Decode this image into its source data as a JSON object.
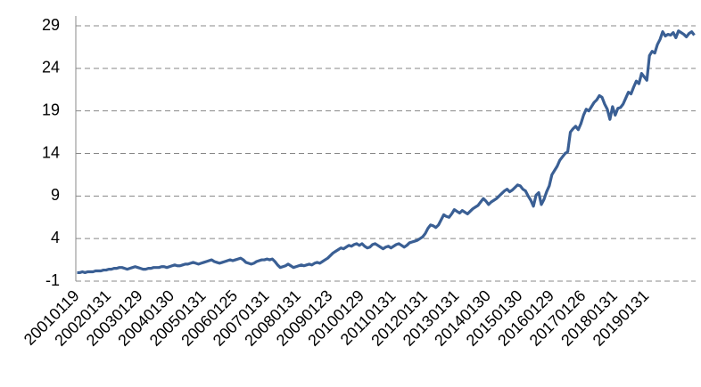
{
  "chart_data": {
    "type": "line",
    "categories": [
      "20010119",
      null,
      null,
      null,
      null,
      null,
      null,
      null,
      null,
      null,
      null,
      null,
      "20020131",
      null,
      null,
      null,
      null,
      null,
      null,
      null,
      null,
      null,
      null,
      null,
      "20030129",
      null,
      null,
      null,
      null,
      null,
      null,
      null,
      null,
      null,
      null,
      null,
      "20040130",
      null,
      null,
      null,
      null,
      null,
      null,
      null,
      null,
      null,
      null,
      null,
      "20050131",
      null,
      null,
      null,
      null,
      null,
      null,
      null,
      null,
      null,
      null,
      null,
      "20060125",
      null,
      null,
      null,
      null,
      null,
      null,
      null,
      null,
      null,
      null,
      null,
      "20070131",
      null,
      null,
      null,
      null,
      null,
      null,
      null,
      null,
      null,
      null,
      null,
      "20080131",
      null,
      null,
      null,
      null,
      null,
      null,
      null,
      null,
      null,
      null,
      null,
      "20090123",
      null,
      null,
      null,
      null,
      null,
      null,
      null,
      null,
      null,
      null,
      null,
      "20100129",
      null,
      null,
      null,
      null,
      null,
      null,
      null,
      null,
      null,
      null,
      null,
      "20110131",
      null,
      null,
      null,
      null,
      null,
      null,
      null,
      null,
      null,
      null,
      null,
      "20120131",
      null,
      null,
      null,
      null,
      null,
      null,
      null,
      null,
      null,
      null,
      null,
      "20130131",
      null,
      null,
      null,
      null,
      null,
      null,
      null,
      null,
      null,
      null,
      null,
      "20140130",
      null,
      null,
      null,
      null,
      null,
      null,
      null,
      null,
      null,
      null,
      null,
      "20150130",
      null,
      null,
      null,
      null,
      null,
      null,
      null,
      null,
      null,
      null,
      null,
      "20160129",
      null,
      null,
      null,
      null,
      null,
      null,
      null,
      null,
      null,
      null,
      null,
      "20170126",
      null,
      null,
      null,
      null,
      null,
      null,
      null,
      null,
      null,
      null,
      null,
      "20180131",
      null,
      null,
      null,
      null,
      null,
      null,
      null,
      null,
      null,
      null,
      null,
      "20190131",
      null,
      null,
      null,
      null,
      null,
      null,
      null,
      null,
      null,
      null,
      null,
      null,
      null,
      null,
      null,
      null,
      null,
      null
    ],
    "values": [
      0.0,
      0.0,
      0.1,
      0.0,
      0.1,
      0.1,
      0.1,
      0.2,
      0.2,
      0.2,
      0.3,
      0.3,
      0.4,
      0.4,
      0.5,
      0.5,
      0.6,
      0.6,
      0.5,
      0.4,
      0.5,
      0.6,
      0.7,
      0.6,
      0.5,
      0.4,
      0.4,
      0.5,
      0.5,
      0.6,
      0.6,
      0.6,
      0.7,
      0.7,
      0.6,
      0.7,
      0.8,
      0.9,
      0.8,
      0.8,
      0.9,
      1.0,
      1.0,
      1.1,
      1.2,
      1.1,
      1.0,
      1.1,
      1.2,
      1.3,
      1.4,
      1.5,
      1.3,
      1.2,
      1.1,
      1.2,
      1.3,
      1.4,
      1.5,
      1.4,
      1.5,
      1.6,
      1.7,
      1.5,
      1.2,
      1.1,
      1.0,
      1.1,
      1.3,
      1.4,
      1.5,
      1.5,
      1.6,
      1.5,
      1.6,
      1.3,
      0.9,
      0.6,
      0.7,
      0.8,
      1.0,
      0.8,
      0.6,
      0.7,
      0.8,
      0.9,
      0.8,
      0.9,
      1.0,
      0.9,
      1.1,
      1.2,
      1.1,
      1.3,
      1.5,
      1.7,
      2.0,
      2.3,
      2.5,
      2.7,
      2.9,
      2.8,
      3.0,
      3.2,
      3.1,
      3.3,
      3.4,
      3.2,
      3.4,
      3.1,
      2.9,
      3.0,
      3.3,
      3.4,
      3.2,
      3.0,
      2.8,
      3.0,
      3.1,
      2.9,
      3.1,
      3.3,
      3.4,
      3.2,
      3.0,
      3.2,
      3.5,
      3.6,
      3.7,
      3.8,
      4.0,
      4.2,
      4.6,
      5.2,
      5.6,
      5.5,
      5.3,
      5.6,
      6.2,
      6.8,
      6.6,
      6.5,
      6.9,
      7.4,
      7.2,
      7.0,
      7.3,
      7.1,
      6.9,
      7.2,
      7.5,
      7.7,
      7.9,
      8.3,
      8.7,
      8.4,
      8.0,
      8.3,
      8.5,
      8.7,
      9.0,
      9.3,
      9.6,
      9.8,
      9.5,
      9.7,
      10.0,
      10.3,
      10.2,
      9.8,
      9.6,
      9.0,
      8.5,
      7.8,
      9.1,
      9.4,
      8.0,
      8.6,
      9.5,
      10.2,
      11.5,
      12.0,
      12.5,
      13.2,
      13.6,
      14.0,
      14.2,
      16.5,
      16.9,
      17.2,
      16.8,
      17.5,
      18.5,
      19.2,
      19.0,
      19.5,
      20.0,
      20.3,
      20.8,
      20.6,
      19.8,
      19.2,
      18.0,
      19.5,
      18.5,
      19.3,
      19.4,
      19.8,
      20.5,
      21.2,
      21.0,
      21.8,
      22.5,
      22.2,
      23.4,
      23.0,
      22.6,
      25.5,
      26.0,
      25.8,
      26.8,
      27.4,
      28.3,
      27.8,
      28.0,
      27.9,
      28.2,
      27.6,
      28.4,
      28.2,
      28.0,
      27.7,
      28.1,
      28.3,
      27.9
    ],
    "color": "#3a5f94",
    "ylim": [
      -1,
      29
    ],
    "yticks": [
      -1,
      4,
      9,
      14,
      19,
      24,
      29
    ],
    "grid": true
  }
}
